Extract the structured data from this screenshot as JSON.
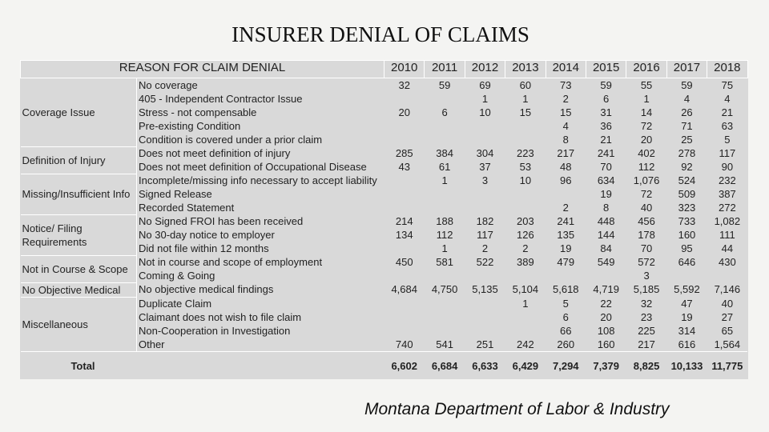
{
  "title": "INSURER DENIAL  OF CLAIMS",
  "table": {
    "header": "REASON FOR CLAIM DENIAL",
    "years": [
      "2010",
      "2011",
      "2012",
      "2013",
      "2014",
      "2015",
      "2016",
      "2017",
      "2018"
    ],
    "groups": [
      {
        "label": "Coverage Issue",
        "rows": [
          {
            "reason": "No coverage",
            "values": [
              "32",
              "59",
              "69",
              "60",
              "73",
              "59",
              "55",
              "59",
              "75"
            ]
          },
          {
            "reason": "405 - Independent Contractor Issue",
            "values": [
              null,
              null,
              "1",
              "1",
              "2",
              "6",
              "1",
              "4",
              "4"
            ]
          },
          {
            "reason": "Stress - not compensable",
            "values": [
              "20",
              "6",
              "10",
              "15",
              "15",
              "31",
              "14",
              "26",
              "21"
            ]
          },
          {
            "reason": "Pre-existing Condition",
            "values": [
              null,
              null,
              null,
              null,
              "4",
              "36",
              "72",
              "71",
              "63"
            ]
          },
          {
            "reason": "Condition is covered under a prior claim",
            "values": [
              null,
              null,
              null,
              null,
              "8",
              "21",
              "20",
              "25",
              "5"
            ]
          }
        ]
      },
      {
        "label": "Definition of Injury",
        "rows": [
          {
            "reason": "Does not meet definition of injury",
            "values": [
              "285",
              "384",
              "304",
              "223",
              "217",
              "241",
              "402",
              "278",
              "117"
            ]
          },
          {
            "reason": "Does not meet definition of Occupational Disease",
            "values": [
              "43",
              "61",
              "37",
              "53",
              "48",
              "70",
              "112",
              "92",
              "90"
            ]
          }
        ]
      },
      {
        "label": "Missing/Insufficient Info",
        "rows": [
          {
            "reason": "Incomplete/missing info necessary to accept liability",
            "values": [
              null,
              "1",
              "3",
              "10",
              "96",
              "634",
              "1,076",
              "524",
              "232"
            ]
          },
          {
            "reason": "Signed Release",
            "values": [
              null,
              null,
              null,
              null,
              null,
              "19",
              "72",
              "509",
              "387"
            ]
          },
          {
            "reason": "Recorded Statement",
            "values": [
              null,
              null,
              null,
              null,
              "2",
              "8",
              "40",
              "323",
              "272"
            ]
          }
        ]
      },
      {
        "label": "Notice/ Filing Requirements",
        "rows": [
          {
            "reason": "No Signed FROI has been received",
            "values": [
              "214",
              "188",
              "182",
              "203",
              "241",
              "448",
              "456",
              "733",
              "1,082"
            ]
          },
          {
            "reason": "No 30-day notice to employer",
            "values": [
              "134",
              "112",
              "117",
              "126",
              "135",
              "144",
              "178",
              "160",
              "111"
            ]
          },
          {
            "reason": "Did not file within 12 months",
            "values": [
              null,
              "1",
              "2",
              "2",
              "19",
              "84",
              "70",
              "95",
              "44"
            ]
          }
        ]
      },
      {
        "label": "Not in Course & Scope",
        "rows": [
          {
            "reason": "Not in course and scope of employment",
            "values": [
              "450",
              "581",
              "522",
              "389",
              "479",
              "549",
              "572",
              "646",
              "430"
            ]
          },
          {
            "reason": "Coming & Going",
            "values": [
              null,
              null,
              null,
              null,
              null,
              null,
              "3",
              null,
              null
            ]
          }
        ]
      },
      {
        "label": "No Objective Medical",
        "rows": [
          {
            "reason": "No objective medical findings",
            "values": [
              "4,684",
              "4,750",
              "5,135",
              "5,104",
              "5,618",
              "4,719",
              "5,185",
              "5,592",
              "7,146"
            ]
          }
        ]
      },
      {
        "label": "Miscellaneous",
        "rows": [
          {
            "reason": "Duplicate Claim",
            "values": [
              null,
              null,
              null,
              "1",
              "5",
              "22",
              "32",
              "47",
              "40"
            ]
          },
          {
            "reason": "Claimant does not wish to file claim",
            "values": [
              null,
              null,
              null,
              null,
              "6",
              "20",
              "23",
              "19",
              "27"
            ]
          },
          {
            "reason": "Non-Cooperation in Investigation",
            "values": [
              null,
              null,
              null,
              null,
              "66",
              "108",
              "225",
              "314",
              "65"
            ]
          },
          {
            "reason": "Other",
            "values": [
              "740",
              "541",
              "251",
              "242",
              "260",
              "160",
              "217",
              "616",
              "1,564"
            ]
          }
        ]
      }
    ],
    "total": {
      "label": "Total",
      "values": [
        "6,602",
        "6,684",
        "6,633",
        "6,429",
        "7,294",
        "7,379",
        "8,825",
        "10,133",
        "11,775"
      ]
    }
  },
  "footer": "Montana Department of Labor & Industry"
}
